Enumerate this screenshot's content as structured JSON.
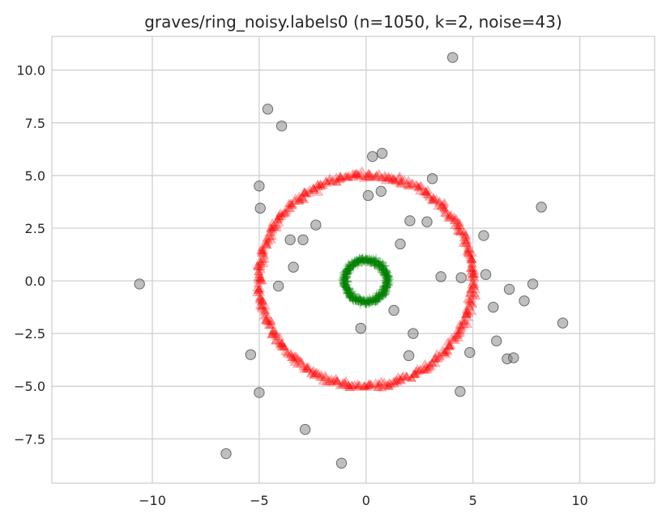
{
  "chart_data": {
    "type": "scatter",
    "title": "graves/ring_noisy.labels0 (n=1050, k=2, noise=43)",
    "xlabel": "",
    "ylabel": "",
    "xlim": [
      -14.7,
      13.5
    ],
    "ylim": [
      -9.6,
      11.6
    ],
    "x_ticks": [
      -10,
      -5,
      0,
      5,
      10
    ],
    "x_tick_labels": [
      "−10",
      "−5",
      "0",
      "5",
      "10"
    ],
    "y_ticks": [
      -7.5,
      -5.0,
      -2.5,
      0.0,
      2.5,
      5.0,
      7.5,
      10.0
    ],
    "y_tick_labels": [
      "−7.5",
      "−5.0",
      "−2.5",
      "0.0",
      "2.5",
      "5.0",
      "7.5",
      "10.0"
    ],
    "grid": true,
    "legend": "none",
    "colors": {
      "outer_ring": "#ff0000",
      "inner_ring": "#008000",
      "noise": "#808080",
      "grid": "#cccccc",
      "background": "#ffffff"
    },
    "series": [
      {
        "marker": "triangle",
        "color": "#ff0000",
        "opacity": 0.25,
        "shape": "ring",
        "center": [
          0,
          0
        ],
        "radius": 5.0,
        "spread": 0.12,
        "count": 507
      },
      {
        "marker": "plus",
        "color": "#008000",
        "opacity": 0.3,
        "shape": "ring",
        "center": [
          0,
          0
        ],
        "radius": 1.0,
        "spread": 0.1,
        "count": 500
      },
      {
        "marker": "circle",
        "color": "#808080",
        "opacity": 0.5,
        "shape": "points",
        "points": [
          [
            4.05,
            10.6
          ],
          [
            -4.6,
            8.15
          ],
          [
            -3.95,
            7.35
          ],
          [
            0.75,
            6.05
          ],
          [
            0.3,
            5.9
          ],
          [
            3.1,
            4.85
          ],
          [
            -5.0,
            4.5
          ],
          [
            0.7,
            4.25
          ],
          [
            0.1,
            4.05
          ],
          [
            -4.95,
            3.45
          ],
          [
            8.2,
            3.5
          ],
          [
            2.05,
            2.85
          ],
          [
            2.85,
            2.8
          ],
          [
            -2.35,
            2.65
          ],
          [
            5.5,
            2.15
          ],
          [
            -3.55,
            1.95
          ],
          [
            -2.95,
            1.95
          ],
          [
            1.6,
            1.75
          ],
          [
            -3.4,
            0.65
          ],
          [
            5.6,
            0.3
          ],
          [
            3.5,
            0.2
          ],
          [
            4.45,
            0.15
          ],
          [
            -10.6,
            -0.15
          ],
          [
            -4.1,
            -0.25
          ],
          [
            7.8,
            -0.15
          ],
          [
            6.7,
            -0.4
          ],
          [
            7.4,
            -0.95
          ],
          [
            5.95,
            -1.25
          ],
          [
            1.3,
            -1.4
          ],
          [
            9.2,
            -2.0
          ],
          [
            -0.25,
            -2.25
          ],
          [
            2.2,
            -2.5
          ],
          [
            6.1,
            -2.85
          ],
          [
            4.85,
            -3.4
          ],
          [
            -5.4,
            -3.5
          ],
          [
            2.0,
            -3.55
          ],
          [
            6.6,
            -3.7
          ],
          [
            6.9,
            -3.65
          ],
          [
            4.4,
            -5.25
          ],
          [
            -5.0,
            -5.3
          ],
          [
            -2.85,
            -7.05
          ],
          [
            -6.55,
            -8.2
          ],
          [
            -1.15,
            -8.65
          ]
        ]
      }
    ]
  }
}
